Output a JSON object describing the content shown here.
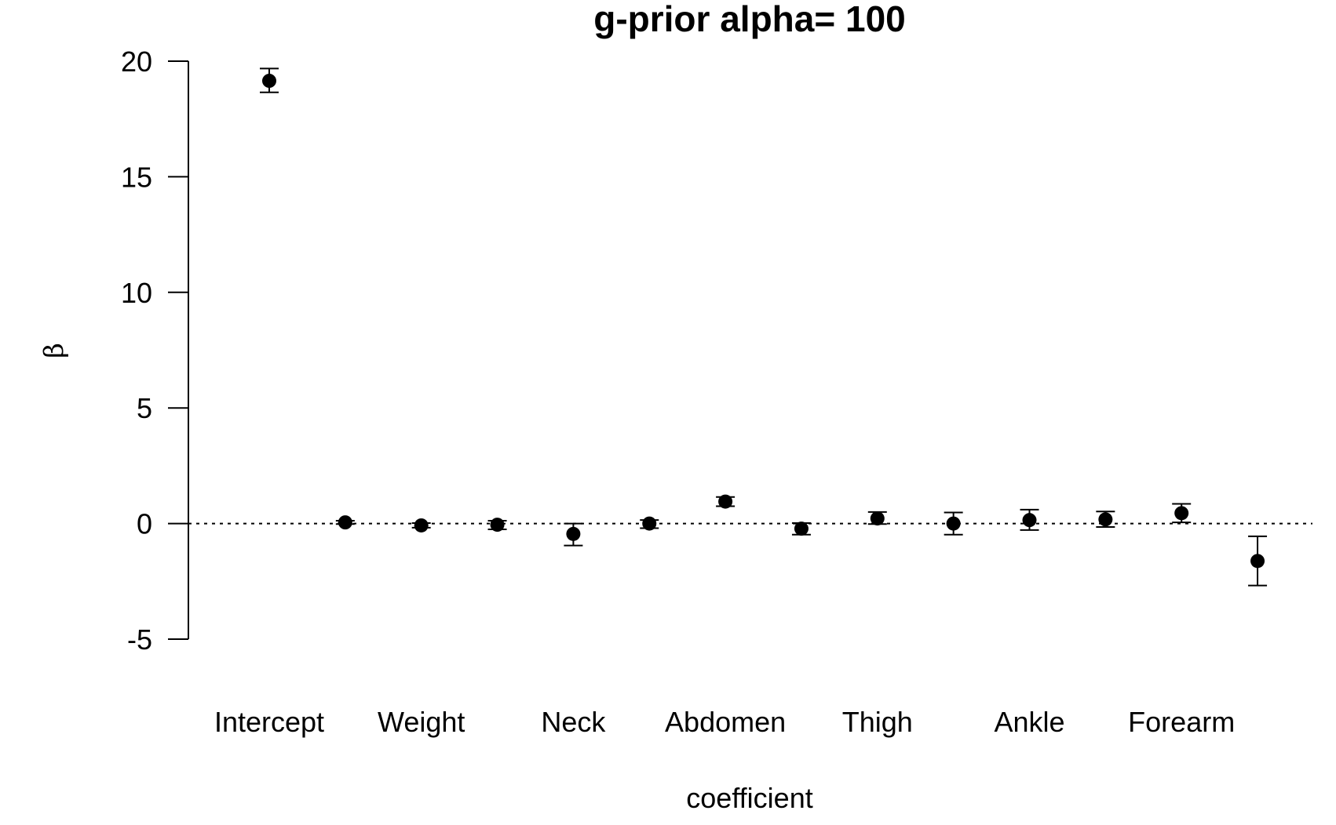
{
  "chart_data": {
    "type": "scatter",
    "title": "g-prior alpha= 100",
    "xlabel": "coefficient",
    "ylabel": "β",
    "ylim": [
      -5,
      20
    ],
    "yticks": [
      -5,
      0,
      5,
      10,
      15,
      20
    ],
    "grid": false,
    "legend": "none",
    "reference_line": {
      "y": 0,
      "style": "dotted"
    },
    "categories": [
      "Intercept",
      "",
      "Weight",
      "",
      "Neck",
      "",
      "Abdomen",
      "",
      "Thigh",
      "",
      "Ankle",
      "",
      "Forearm",
      ""
    ],
    "series": [
      {
        "values": [
          19.15,
          0.05,
          -0.08,
          -0.05,
          -0.45,
          0.0,
          0.95,
          -0.22,
          0.22,
          0.0,
          0.15,
          0.18,
          0.45,
          -1.62
        ],
        "lower": [
          18.65,
          -0.02,
          -0.18,
          -0.25,
          -0.95,
          -0.2,
          0.75,
          -0.48,
          -0.02,
          -0.48,
          -0.28,
          -0.15,
          0.05,
          -2.68
        ],
        "upper": [
          19.68,
          0.12,
          0.02,
          0.12,
          0.0,
          0.15,
          1.15,
          0.02,
          0.5,
          0.48,
          0.6,
          0.52,
          0.85,
          -0.55
        ]
      }
    ]
  }
}
